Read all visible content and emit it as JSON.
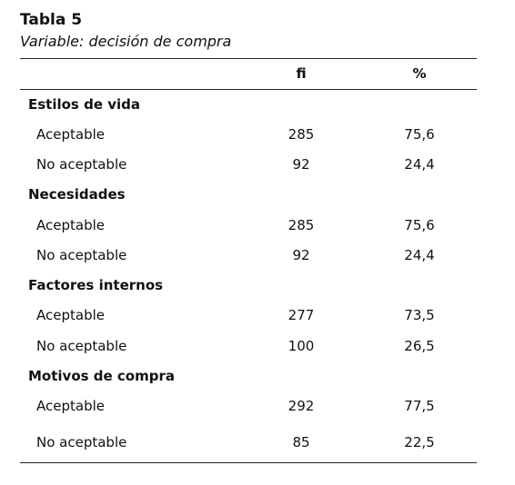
{
  "title": "Tabla 5",
  "subtitle": "Variable: decisión de compra",
  "header": [
    "fi",
    "%"
  ],
  "groups": [
    {
      "label": "Estilos de vida",
      "rows": [
        [
          "Aceptable",
          "285",
          "75,6"
        ],
        [
          "No aceptable",
          "92",
          "24,4"
        ]
      ]
    },
    {
      "label": "Necesidades",
      "rows": [
        [
          "Aceptable",
          "285",
          "75,6"
        ],
        [
          "No aceptable",
          "92",
          "24,4"
        ]
      ]
    },
    {
      "label": "Factores internos",
      "rows": [
        [
          "Aceptable",
          "277",
          "73,5"
        ],
        [
          "No aceptable",
          "100",
          "26,5"
        ]
      ]
    },
    {
      "label": "Motivos de compra",
      "rows": [
        [
          "Aceptable",
          "292",
          "77,5"
        ],
        [
          "No aceptable",
          "85",
          "22,5"
        ]
      ]
    }
  ]
}
